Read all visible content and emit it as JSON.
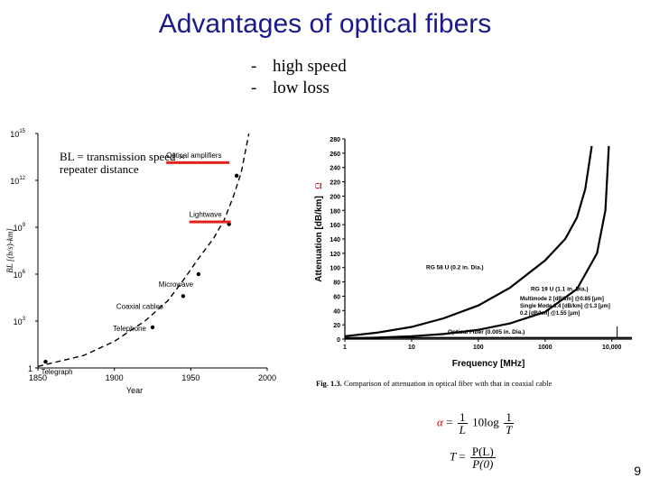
{
  "slide": {
    "title": "Advantages of optical fibers",
    "bullets": [
      {
        "dash": "-",
        "text": "high speed"
      },
      {
        "dash": "-",
        "text": "low loss"
      }
    ],
    "page_number": "9"
  },
  "formula": {
    "alpha": "α",
    "equals": "=",
    "f1_num": "1",
    "f1_den": "L",
    "coef": "10",
    "log": "log",
    "f2_num": "1",
    "f2_den": "T",
    "T": "T",
    "f3_num": "P(L)",
    "f3_den": "P(0)"
  },
  "colors": {
    "title": "#1a1a8c",
    "highlight_bar": "#e0211a",
    "omega": "#c00000"
  },
  "chart_data": [
    {
      "type": "line",
      "annotation": "BL = transmission speed × repeater distance",
      "annotation_lines": [
        "BL = transmission speed ×",
        "repeater distance"
      ],
      "ylabel": "BL [(b/s)-km]",
      "xlabel": "Year",
      "x_ticks": [
        "1850",
        "1900",
        "1950",
        "2000"
      ],
      "y_ticks": [
        {
          "base": "10",
          "exp": "15",
          "value": 1000000000000000.0
        },
        {
          "base": "10",
          "exp": "12",
          "value": 1000000000000.0
        },
        {
          "base": "10",
          "exp": "9",
          "value": 1000000000.0
        },
        {
          "base": "10",
          "exp": "6",
          "value": 1000000.0
        },
        {
          "base": "10",
          "exp": "3",
          "value": 1000.0
        },
        {
          "base": "1",
          "exp": "",
          "value": 1
        }
      ],
      "xlim": [
        1850,
        2000
      ],
      "y_log_range": [
        0,
        15
      ],
      "grid": false,
      "curve_style": "dashed",
      "series": [
        {
          "points": [
            {
              "year": 1850,
              "log_bl": 0.1
            },
            {
              "year": 1880,
              "log_bl": 0.8
            },
            {
              "year": 1900,
              "log_bl": 1.7
            },
            {
              "year": 1920,
              "log_bl": 3.0
            },
            {
              "year": 1935,
              "log_bl": 4.3
            },
            {
              "year": 1945,
              "log_bl": 5.6
            },
            {
              "year": 1955,
              "log_bl": 7.0
            },
            {
              "year": 1965,
              "log_bl": 8.3
            },
            {
              "year": 1972,
              "log_bl": 9.5
            },
            {
              "year": 1978,
              "log_bl": 11.0
            },
            {
              "year": 1983,
              "log_bl": 12.5
            },
            {
              "year": 1986,
              "log_bl": 14.0
            },
            {
              "year": 1988,
              "log_bl": 15.0
            }
          ]
        }
      ],
      "milestones": [
        {
          "label": "Telegraph",
          "year": 1855,
          "log_bl": 0.4
        },
        {
          "label": "Telephone",
          "year": 1925,
          "log_bl": 2.6
        },
        {
          "label": "Coaxial cables",
          "year": 1945,
          "log_bl": 4.6
        },
        {
          "label": "Microwave",
          "year": 1955,
          "log_bl": 6.0
        },
        {
          "label": "Lightwave",
          "year": 1975,
          "log_bl": 9.2
        },
        {
          "label": "Optical amplifiers",
          "year": 1980,
          "log_bl": 12.3
        }
      ],
      "highlighted": [
        "Optical amplifiers",
        "Lightwave"
      ]
    },
    {
      "type": "line",
      "xlabel": "Frequency [MHz]",
      "ylabel": "Attenuation [dB/km]",
      "ylabel_symbol": "Ω",
      "x_scale": "log",
      "x_ticks": [
        {
          "label": "1",
          "value": 1
        },
        {
          "label": "10",
          "value": 10
        },
        {
          "label": "100",
          "value": 100
        },
        {
          "label": "1000",
          "value": 1000
        },
        {
          "label": "10,000",
          "value": 10000
        }
      ],
      "y_ticks": [
        0,
        20,
        40,
        60,
        80,
        100,
        120,
        140,
        160,
        180,
        200,
        220,
        240,
        260,
        280
      ],
      "xlim": [
        1,
        20000
      ],
      "ylim": [
        0,
        280
      ],
      "grid": false,
      "caption_bold": "Fig. 1.3.",
      "caption_text": "Comparison of attenuation in optical fiber with that in coaxial cable",
      "series": [
        {
          "name": "RG 58 U (0.2 in. Dia.)",
          "x": [
            1,
            3,
            10,
            30,
            100,
            300,
            1000,
            2000,
            3000,
            4000,
            5000
          ],
          "y": [
            4,
            9,
            17,
            29,
            47,
            72,
            110,
            140,
            170,
            210,
            270
          ]
        },
        {
          "name": "RG 19 U (1.1 in. Dia.)",
          "x": [
            1,
            3,
            10,
            30,
            100,
            300,
            1000,
            3000,
            6000,
            8000,
            9000
          ],
          "y": [
            1,
            2,
            4,
            7,
            13,
            22,
            38,
            70,
            120,
            180,
            270
          ]
        },
        {
          "name": "Optical Fiber (0.005 in. Dia.)",
          "x": [
            1,
            10,
            100,
            1000,
            10000,
            20000
          ],
          "y": [
            2,
            2,
            2,
            2,
            2,
            2
          ]
        }
      ],
      "fiber_notes": [
        {
          "mode": "Multimode",
          "value": "2",
          "unit": "[dB/km]",
          "at": "@0.85",
          "wl_unit": "[μm]"
        },
        {
          "mode": "Single Mode",
          "value": "0.4",
          "unit": "[dB/km]",
          "at": "@1.3",
          "wl_unit": "[μm]"
        },
        {
          "mode": "",
          "value": "0.2",
          "unit": "[dB/km]",
          "at": "@1.55",
          "wl_unit": "[μm]"
        }
      ]
    }
  ]
}
